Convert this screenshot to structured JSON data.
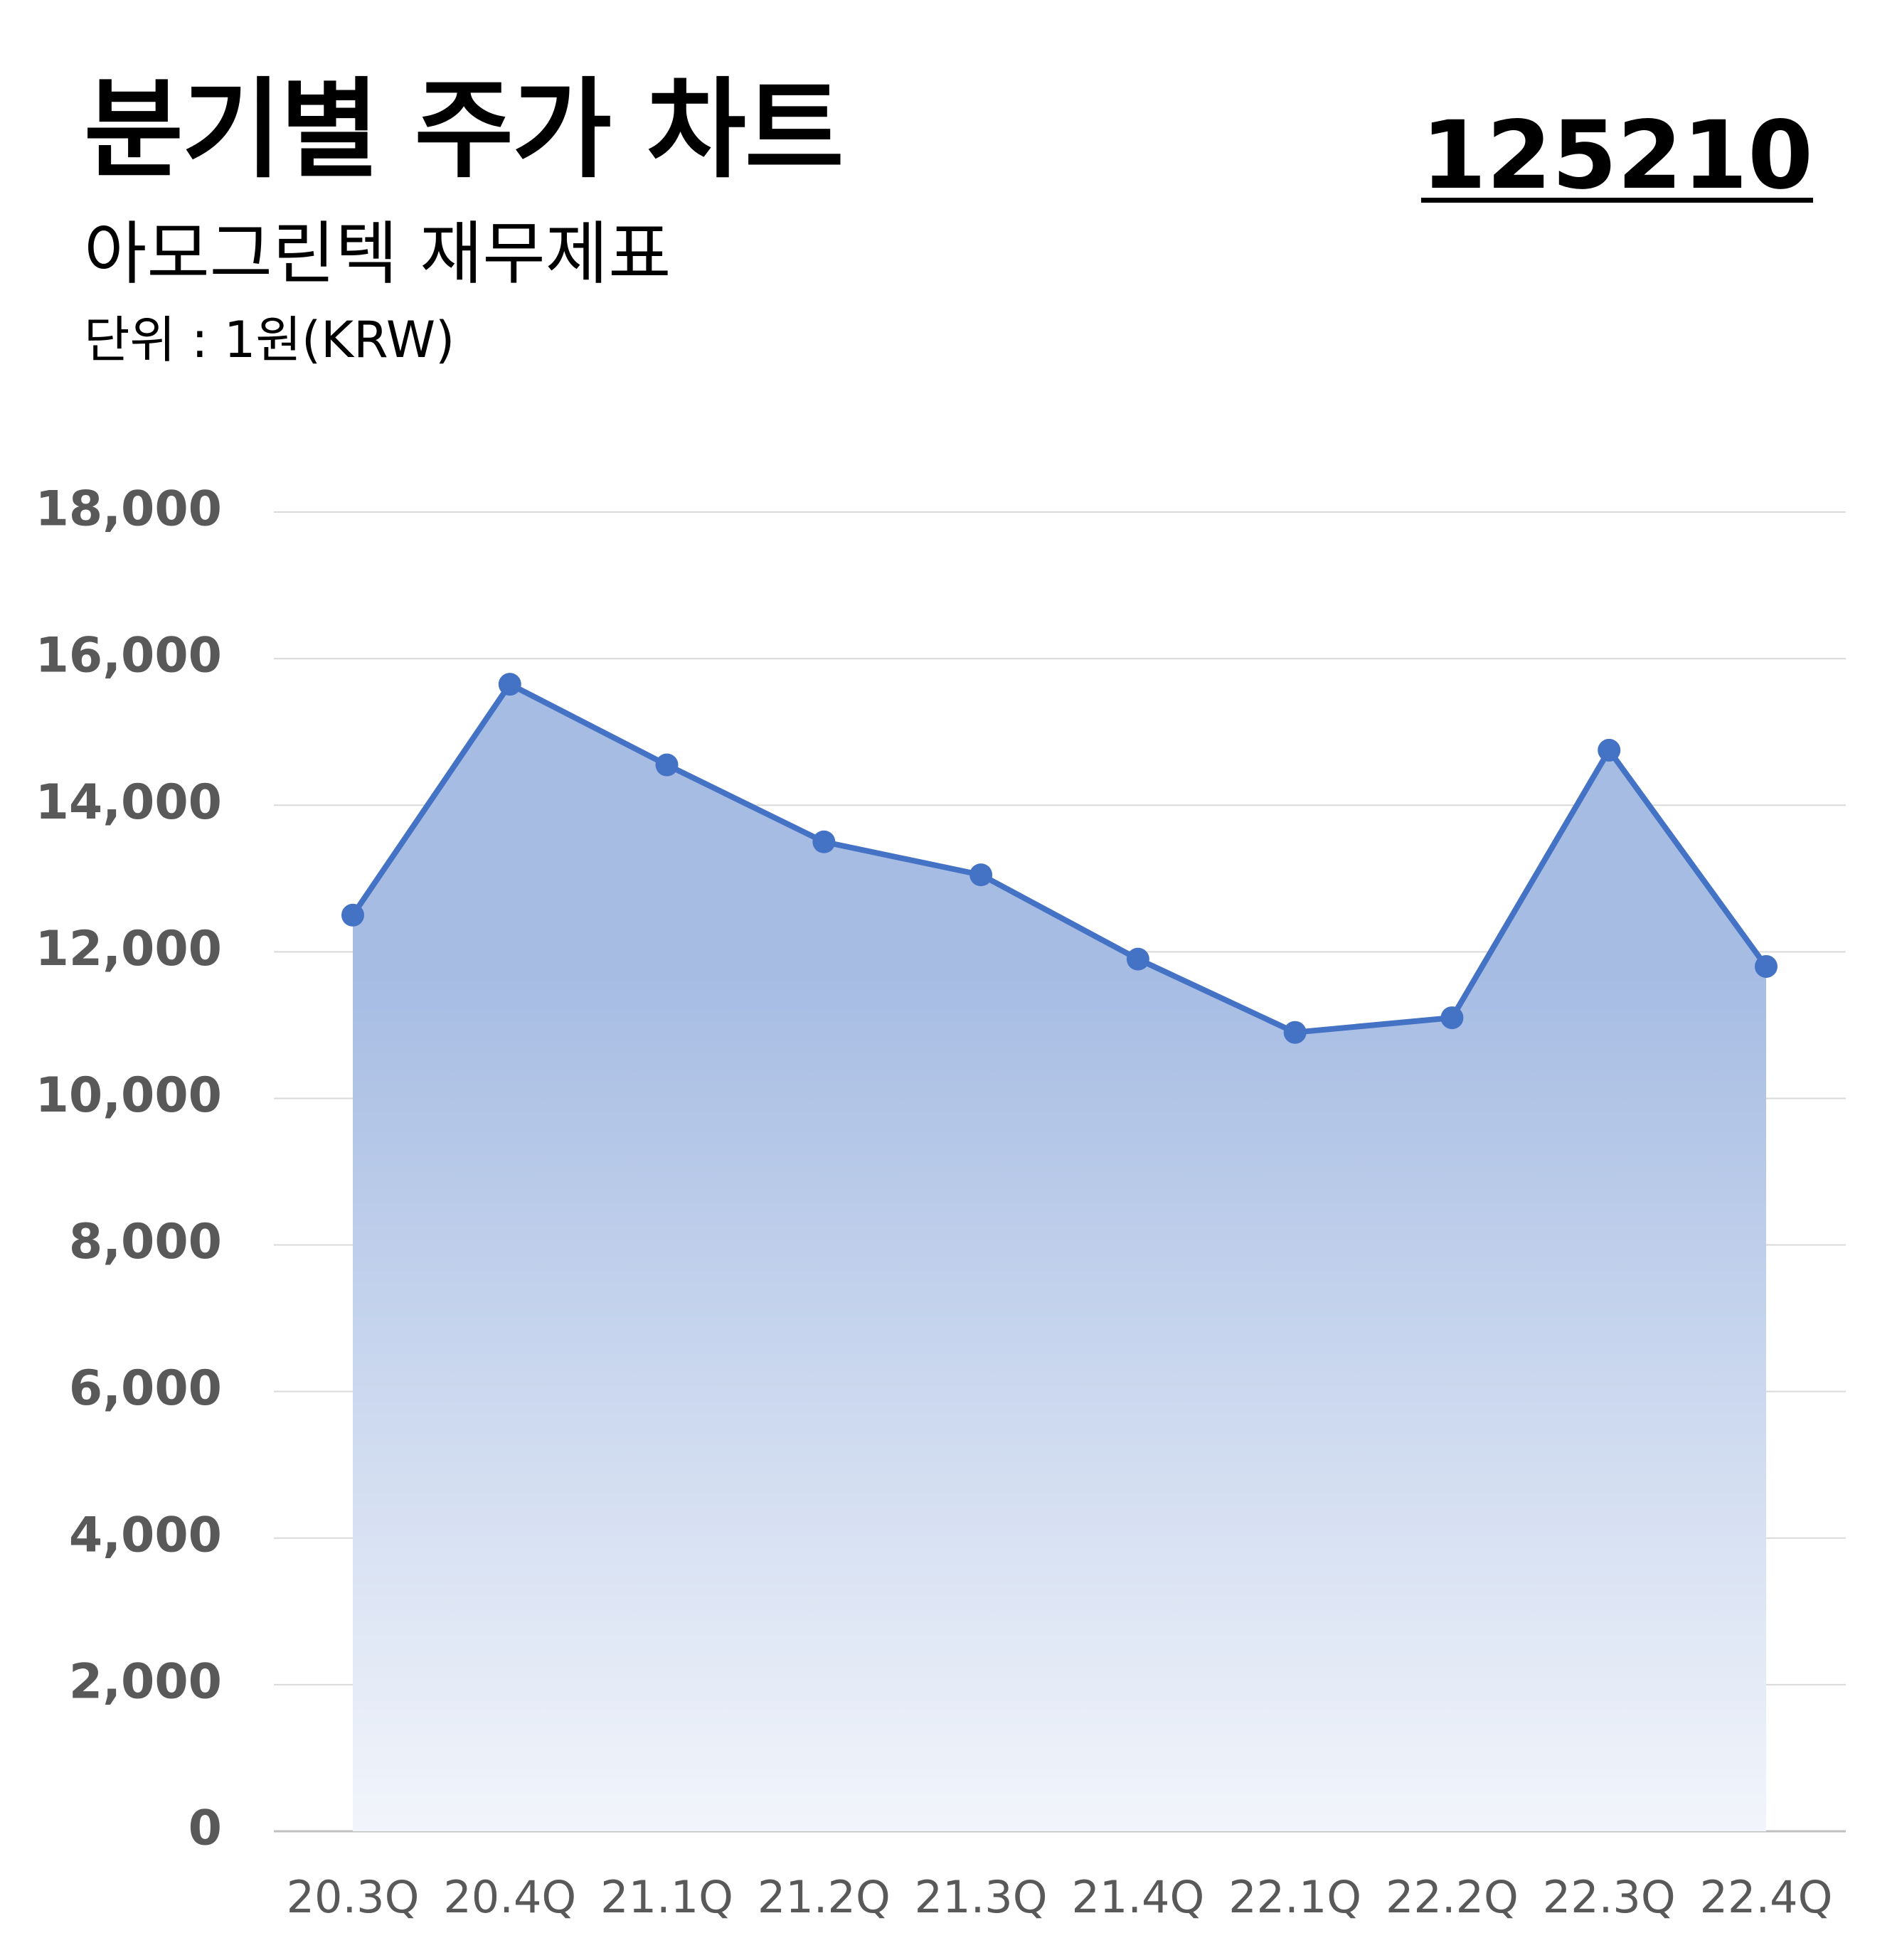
{
  "header": {
    "title": "분기별 주가 차트",
    "subtitle": "아모그린텍 재무제표",
    "unit": "단위 : 1원(KRW)",
    "code": "125210"
  },
  "chart_data": {
    "type": "area",
    "title": "분기별 주가 차트",
    "subtitle": "아모그린텍 재무제표",
    "categories": [
      "20.3Q",
      "20.4Q",
      "21.1Q",
      "21.2Q",
      "21.3Q",
      "21.4Q",
      "22.1Q",
      "22.2Q",
      "22.3Q",
      "22.4Q"
    ],
    "values": [
      12500,
      15650,
      14550,
      13500,
      13050,
      11900,
      10900,
      11100,
      14750,
      11800
    ],
    "ylim": [
      0,
      18000
    ],
    "yticks": [
      0,
      2000,
      4000,
      6000,
      8000,
      10000,
      12000,
      14000,
      16000,
      18000
    ],
    "ytick_labels": [
      "0",
      "2,000",
      "4,000",
      "6,000",
      "8,000",
      "10,000",
      "12,000",
      "14,000",
      "16,000",
      "18,000"
    ],
    "grid": true,
    "legend": "none",
    "colors": {
      "line": "#4472C4",
      "fill_top": "#A6BCE3",
      "fill_bottom": "#F2F5FB",
      "grid": "#D9D9D9",
      "tick_text": "#595959"
    }
  }
}
